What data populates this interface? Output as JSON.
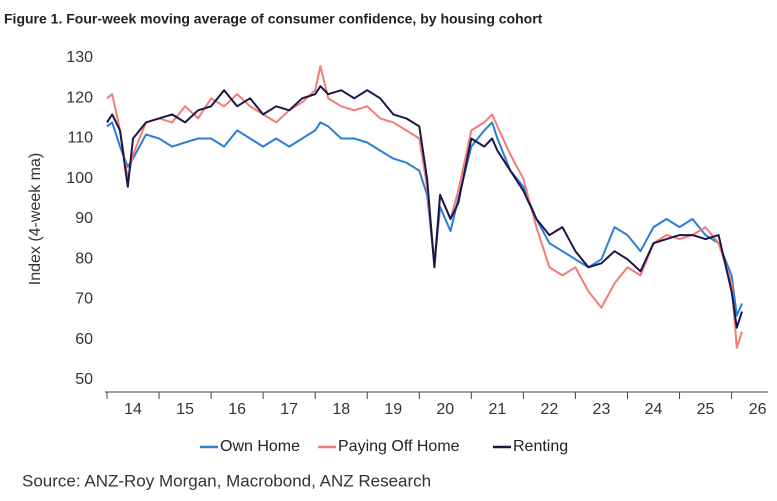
{
  "chart_data": {
    "type": "line",
    "title": "Figure 1. Four-week moving average of consumer confidence, by housing cohort",
    "ylabel": "Index (4-week ma)",
    "source": "Source: ANZ-Roy Morgan, Macrobond, ANZ Research",
    "x": [
      2014,
      2014.1,
      2014.25,
      2014.4,
      2014.5,
      2014.75,
      2015,
      2015.25,
      2015.5,
      2015.75,
      2016,
      2016.25,
      2016.5,
      2016.75,
      2017,
      2017.25,
      2017.5,
      2017.75,
      2018,
      2018.1,
      2018.25,
      2018.5,
      2018.75,
      2019,
      2019.25,
      2019.5,
      2019.75,
      2020,
      2020.15,
      2020.29,
      2020.4,
      2020.6,
      2020.75,
      2021,
      2021.25,
      2021.4,
      2021.5,
      2021.75,
      2022,
      2022.25,
      2022.5,
      2022.75,
      2023,
      2023.25,
      2023.5,
      2023.75,
      2024,
      2024.25,
      2024.5,
      2024.75,
      2025,
      2025.25,
      2025.5,
      2025.75,
      2026,
      2026.1,
      2026.2
    ],
    "series": [
      {
        "name": "Own Home",
        "color": "#2a7fd6",
        "values": [
          113,
          114,
          108,
          103,
          105,
          111,
          110,
          108,
          109,
          110,
          110,
          108,
          112,
          110,
          108,
          110,
          108,
          110,
          112,
          114,
          113,
          110,
          110,
          109,
          107,
          105,
          104,
          102,
          96,
          79,
          93,
          87,
          95,
          108,
          112,
          114,
          110,
          102,
          98,
          90,
          84,
          82,
          80,
          78,
          80,
          88,
          86,
          82,
          88,
          90,
          88,
          90,
          86,
          84,
          76,
          66,
          69
        ]
      },
      {
        "name": "Paying Off Home",
        "color": "#f47c78",
        "values": [
          120,
          121,
          112,
          100,
          106,
          114,
          115,
          114,
          118,
          115,
          120,
          118,
          121,
          118,
          116,
          114,
          117,
          119,
          122,
          128,
          120,
          118,
          117,
          118,
          115,
          114,
          112,
          110,
          98,
          79,
          96,
          90,
          97,
          112,
          114,
          116,
          113,
          106,
          100,
          88,
          78,
          76,
          78,
          72,
          68,
          74,
          78,
          76,
          84,
          86,
          85,
          86,
          88,
          84,
          74,
          58,
          62
        ]
      },
      {
        "name": "Renting",
        "color": "#1b1648",
        "values": [
          114,
          116,
          112,
          98,
          110,
          114,
          115,
          116,
          114,
          117,
          118,
          122,
          118,
          120,
          116,
          118,
          117,
          120,
          121,
          123,
          121,
          122,
          120,
          122,
          120,
          116,
          115,
          113,
          100,
          78,
          96,
          90,
          94,
          110,
          108,
          110,
          107,
          102,
          97,
          90,
          86,
          88,
          82,
          78,
          79,
          82,
          80,
          77,
          84,
          85,
          86,
          86,
          85,
          86,
          72,
          63,
          67
        ]
      }
    ],
    "xlim": [
      2014,
      2026.7
    ],
    "xticks": [
      {
        "value": 2014,
        "label": "14"
      },
      {
        "value": 2015,
        "label": "15"
      },
      {
        "value": 2016,
        "label": "16"
      },
      {
        "value": 2017,
        "label": "17"
      },
      {
        "value": 2018,
        "label": "18"
      },
      {
        "value": 2019,
        "label": "19"
      },
      {
        "value": 2020,
        "label": "20"
      },
      {
        "value": 2021,
        "label": "21"
      },
      {
        "value": 2022,
        "label": "22"
      },
      {
        "value": 2023,
        "label": "23"
      },
      {
        "value": 2024,
        "label": "24"
      },
      {
        "value": 2025,
        "label": "25"
      },
      {
        "value": 2026,
        "label": "26"
      }
    ],
    "ylim": [
      50,
      130
    ],
    "yticks": [
      50,
      60,
      70,
      80,
      90,
      100,
      110,
      120,
      130
    ],
    "grid": false,
    "legend": "bottom"
  }
}
